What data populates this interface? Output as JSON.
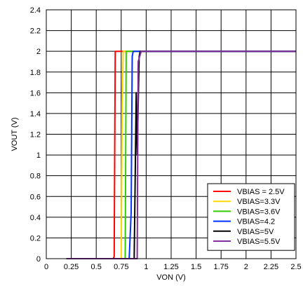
{
  "chart_data": {
    "type": "line",
    "xlabel": "VON (V)",
    "ylabel": "VOUT (V)",
    "xlim": [
      0,
      2.5
    ],
    "ylim": [
      0,
      2.4
    ],
    "x_ticks": [
      0,
      0.25,
      0.5,
      0.75,
      1,
      1.25,
      1.5,
      1.75,
      2,
      2.25,
      2.5
    ],
    "x_tick_labels": [
      "0",
      "0.25",
      "0.5",
      "0.75",
      "1",
      "1.25",
      "1.5",
      "1.75",
      "2",
      "2.25",
      "2.5"
    ],
    "y_ticks": [
      0,
      0.2,
      0.4,
      0.6,
      0.8,
      1,
      1.2,
      1.4,
      1.6,
      1.8,
      2,
      2.2,
      2.4
    ],
    "y_tick_labels": [
      "0",
      "0.2",
      "0.4",
      "0.6",
      "0.8",
      "1",
      "1.2",
      "1.4",
      "1.6",
      "1.8",
      "2",
      "2.2",
      "2.4"
    ],
    "grid": true,
    "legend_position": "bottom-right",
    "series": [
      {
        "name": "VBIAS = 2.5V",
        "color": "#ff0000",
        "points": [
          [
            0.2,
            0
          ],
          [
            0.67,
            0
          ],
          [
            0.68,
            0.02
          ],
          [
            0.69,
            2.0
          ],
          [
            0.75,
            2.0
          ],
          [
            2.5,
            2.0
          ]
        ]
      },
      {
        "name": "VBIAS=3.3V",
        "color": "#ffd700",
        "points": [
          [
            0.2,
            0
          ],
          [
            0.75,
            0
          ],
          [
            0.76,
            1.5
          ],
          [
            0.77,
            2.0
          ],
          [
            0.8,
            2.0
          ],
          [
            2.5,
            2.0
          ]
        ]
      },
      {
        "name": "VBIAS=3.6V",
        "color": "#33cc00",
        "points": [
          [
            0.2,
            0
          ],
          [
            0.79,
            0
          ],
          [
            0.8,
            2.0
          ],
          [
            0.85,
            2.0
          ],
          [
            2.5,
            2.0
          ]
        ]
      },
      {
        "name": "VBIAS=4.2",
        "color": "#0033ff",
        "points": [
          [
            0.2,
            0
          ],
          [
            0.83,
            0
          ],
          [
            0.85,
            0.45
          ],
          [
            0.86,
            1.95
          ],
          [
            0.87,
            2.0
          ],
          [
            2.5,
            2.0
          ]
        ]
      },
      {
        "name": "VBIAS=5V",
        "color": "#000000",
        "points": [
          [
            0.2,
            0
          ],
          [
            0.88,
            0
          ],
          [
            0.89,
            0.75
          ],
          [
            0.9,
            1.6
          ],
          [
            0.91,
            1.0
          ],
          [
            0.93,
            1.95
          ],
          [
            0.94,
            2.0
          ],
          [
            2.5,
            2.0
          ]
        ]
      },
      {
        "name": "VBIAS=5.5V",
        "color": "#7f2f9f",
        "points": [
          [
            0.2,
            0
          ],
          [
            0.91,
            0
          ],
          [
            0.92,
            1.9
          ],
          [
            0.95,
            2.0
          ],
          [
            2.5,
            2.0
          ]
        ]
      }
    ]
  }
}
